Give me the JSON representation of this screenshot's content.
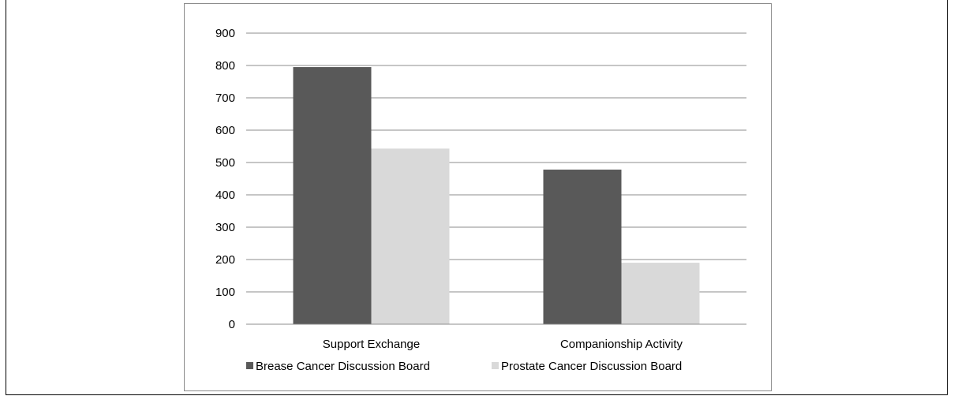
{
  "chart_data": {
    "type": "bar",
    "categories": [
      "Support Exchange",
      "Companionship Activity"
    ],
    "series": [
      {
        "name": "Brease Cancer Discussion Board",
        "values": [
          795,
          478
        ],
        "color": "#595959"
      },
      {
        "name": "Prostate Cancer Discussion Board",
        "values": [
          543,
          190
        ],
        "color": "#d9d9d9"
      }
    ],
    "ylim": [
      0,
      900
    ],
    "yticks": [
      "0",
      "100",
      "200",
      "300",
      "400",
      "500",
      "600",
      "700",
      "800",
      "900"
    ],
    "grid": true,
    "legend": "bottom"
  }
}
